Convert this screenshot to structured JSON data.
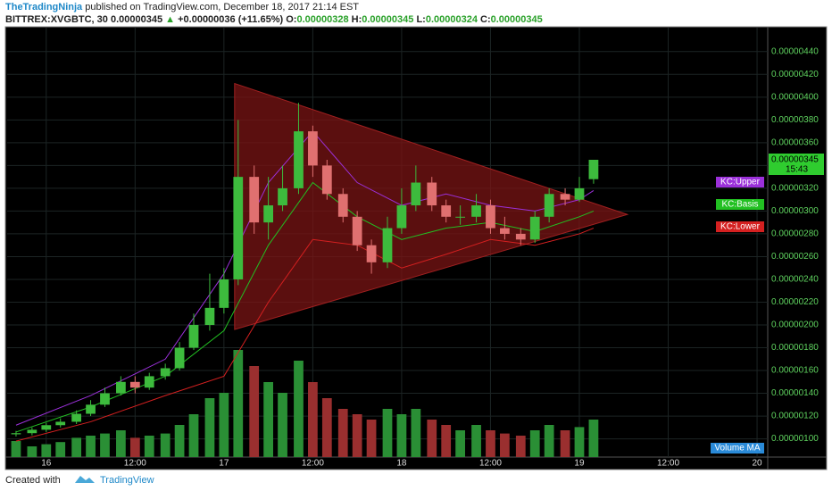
{
  "header": {
    "author": "TheTradingNinja",
    "published": "published on TradingView.com, December 18, 2017 21:14 EST",
    "symbol": "BITTREX:XVGBTC, 30",
    "price": "0.00000345",
    "change": "+0.00000036 (+11.65%)",
    "o_label": "O:",
    "o": "0.00000328",
    "h_label": "H:",
    "h": "0.00000345",
    "l_label": "L:",
    "l": "0.00000324",
    "c_label": "C:",
    "c": "0.00000345"
  },
  "chart_data": {
    "type": "candlestick",
    "xlim": [
      15.78,
      20.06
    ],
    "xticks": [
      16,
      {
        "value": 16.5,
        "label": "12:00"
      },
      17,
      {
        "value": 17.5,
        "label": "12:00"
      },
      18,
      {
        "value": 18.5,
        "label": "12:00"
      },
      19,
      {
        "value": 19.5,
        "label": "12:00"
      },
      20
    ],
    "ylim": [
      8.4e-07,
      4.61e-06
    ],
    "yticks": [
      {
        "value": 1e-06,
        "label": "0.00000100"
      },
      {
        "value": 1.2e-06,
        "label": "0.00000120"
      },
      {
        "value": 1.4e-06,
        "label": "0.00000140"
      },
      {
        "value": 1.6e-06,
        "label": "0.00000160"
      },
      {
        "value": 1.8e-06,
        "label": "0.00000180"
      },
      {
        "value": 2e-06,
        "label": "0.00000200"
      },
      {
        "value": 2.2e-06,
        "label": "0.00000220"
      },
      {
        "value": 2.4e-06,
        "label": "0.00000240"
      },
      {
        "value": 2.6e-06,
        "label": "0.00000260"
      },
      {
        "value": 2.8e-06,
        "label": "0.00000280"
      },
      {
        "value": 3e-06,
        "label": "0.00000300"
      },
      {
        "value": 3.2e-06,
        "label": "0.00000320"
      },
      {
        "value": 3.4e-06,
        "label": "0.00000340"
      },
      {
        "value": 3.6e-06,
        "label": "0.00000360"
      },
      {
        "value": 3.8e-06,
        "label": "0.00000380"
      },
      {
        "value": 4e-06,
        "label": "0.00000400"
      },
      {
        "value": 4.2e-06,
        "label": "0.00000420"
      },
      {
        "value": 4.4e-06,
        "label": "0.00000440"
      }
    ],
    "grid": true,
    "candles": {
      "x": [
        15.83,
        15.92,
        16.0,
        16.08,
        16.17,
        16.25,
        16.33,
        16.42,
        16.5,
        16.58,
        16.67,
        16.75,
        16.83,
        16.92,
        17.0,
        17.08,
        17.17,
        17.25,
        17.33,
        17.42,
        17.5,
        17.58,
        17.67,
        17.75,
        17.83,
        17.92,
        18.0,
        18.08,
        18.17,
        18.25,
        18.33,
        18.42,
        18.5,
        18.58,
        18.67,
        18.75,
        18.83,
        18.92,
        19.0,
        19.08
      ],
      "open": [
        1.04e-06,
        1.05e-06,
        1.08e-06,
        1.12e-06,
        1.15e-06,
        1.22e-06,
        1.3e-06,
        1.4e-06,
        1.5e-06,
        1.45e-06,
        1.55e-06,
        1.62e-06,
        1.8e-06,
        2e-06,
        2.15e-06,
        2.4e-06,
        3.3e-06,
        2.9e-06,
        3.05e-06,
        3.2e-06,
        3.7e-06,
        3.4e-06,
        3.15e-06,
        2.95e-06,
        2.7e-06,
        2.55e-06,
        2.85e-06,
        3.05e-06,
        3.25e-06,
        3.05e-06,
        2.95e-06,
        2.95e-06,
        3.05e-06,
        2.85e-06,
        2.8e-06,
        2.75e-06,
        2.95e-06,
        3.15e-06,
        3.1e-06,
        3.28e-06
      ],
      "high": [
        1.07e-06,
        1.1e-06,
        1.14e-06,
        1.18e-06,
        1.25e-06,
        1.34e-06,
        1.45e-06,
        1.55e-06,
        1.55e-06,
        1.58e-06,
        1.66e-06,
        1.85e-06,
        2.1e-06,
        2.45e-06,
        2.5e-06,
        3.8e-06,
        3.4e-06,
        3.3e-06,
        3.4e-06,
        3.95e-06,
        3.75e-06,
        3.45e-06,
        3.2e-06,
        3e-06,
        2.75e-06,
        2.95e-06,
        3.2e-06,
        3.4e-06,
        3.3e-06,
        3.1e-06,
        3.05e-06,
        3.15e-06,
        3.1e-06,
        2.95e-06,
        2.85e-06,
        3e-06,
        3.2e-06,
        3.2e-06,
        3.3e-06,
        3.45e-06
      ],
      "low": [
        1.02e-06,
        1.03e-06,
        1.06e-06,
        1.1e-06,
        1.13e-06,
        1.2e-06,
        1.28e-06,
        1.38e-06,
        1.4e-06,
        1.43e-06,
        1.52e-06,
        1.6e-06,
        1.78e-06,
        1.95e-06,
        2.1e-06,
        2.35e-06,
        2.8e-06,
        2.75e-06,
        3e-06,
        3.15e-06,
        3.3e-06,
        3.1e-06,
        2.9e-06,
        2.65e-06,
        2.45e-06,
        2.5e-06,
        2.8e-06,
        3e-06,
        3e-06,
        2.9e-06,
        2.88e-06,
        2.9e-06,
        2.8e-06,
        2.75e-06,
        2.7e-06,
        2.72e-06,
        2.9e-06,
        3.05e-06,
        3.08e-06,
        3.24e-06
      ],
      "close": [
        1.05e-06,
        1.08e-06,
        1.12e-06,
        1.15e-06,
        1.22e-06,
        1.3e-06,
        1.4e-06,
        1.5e-06,
        1.45e-06,
        1.55e-06,
        1.62e-06,
        1.8e-06,
        2e-06,
        2.15e-06,
        2.4e-06,
        3.3e-06,
        2.9e-06,
        3.05e-06,
        3.2e-06,
        3.7e-06,
        3.4e-06,
        3.15e-06,
        2.95e-06,
        2.7e-06,
        2.55e-06,
        2.85e-06,
        3.05e-06,
        3.25e-06,
        3.05e-06,
        2.95e-06,
        2.95e-06,
        3.05e-06,
        2.85e-06,
        2.8e-06,
        2.75e-06,
        2.95e-06,
        3.15e-06,
        3.1e-06,
        3.2e-06,
        3.45e-06
      ],
      "volume": [
        15,
        10,
        12,
        14,
        18,
        20,
        22,
        25,
        18,
        20,
        22,
        30,
        40,
        55,
        60,
        100,
        85,
        70,
        60,
        90,
        70,
        55,
        45,
        40,
        35,
        45,
        40,
        45,
        35,
        30,
        25,
        30,
        25,
        22,
        20,
        25,
        30,
        25,
        28,
        35
      ],
      "up_color": "#3dbb3d",
      "down_color": "#e07070",
      "volume_up_color": "#2a8f35",
      "volume_down_color": "#9a2f2f"
    },
    "indicators": [
      {
        "name": "KC:Upper",
        "color": "#9b30d9",
        "x": [
          15.83,
          16.25,
          16.67,
          17.0,
          17.25,
          17.5,
          17.75,
          18.0,
          18.25,
          18.5,
          18.75,
          19.0,
          19.08
        ],
        "values": [
          1.12e-06,
          1.38e-06,
          1.7e-06,
          2.45e-06,
          3.25e-06,
          3.7e-06,
          3.25e-06,
          3.05e-06,
          3.15e-06,
          3.05e-06,
          3e-06,
          3.1e-06,
          3.18e-06
        ]
      },
      {
        "name": "KC:Basis",
        "color": "#22c022",
        "x": [
          15.83,
          16.25,
          16.67,
          17.0,
          17.25,
          17.5,
          17.75,
          18.0,
          18.25,
          18.5,
          18.75,
          19.0,
          19.08
        ],
        "values": [
          1.06e-06,
          1.28e-06,
          1.55e-06,
          1.95e-06,
          2.7e-06,
          3.25e-06,
          2.95e-06,
          2.75e-06,
          2.85e-06,
          2.9e-06,
          2.82e-06,
          2.95e-06,
          3e-06
        ]
      },
      {
        "name": "KC:Lower",
        "color": "#d42020",
        "x": [
          15.83,
          16.25,
          16.67,
          17.0,
          17.25,
          17.5,
          17.75,
          18.0,
          18.25,
          18.5,
          18.75,
          19.0,
          19.08
        ],
        "values": [
          9.8e-07,
          1.15e-06,
          1.38e-06,
          1.55e-06,
          2.2e-06,
          2.75e-06,
          2.7e-06,
          2.5e-06,
          2.62e-06,
          2.75e-06,
          2.7e-06,
          2.8e-06,
          2.85e-06
        ]
      }
    ],
    "triangle": {
      "x": [
        17.06,
        17.06,
        19.27
      ],
      "y": [
        4.12e-06,
        1.96e-06,
        2.97e-06
      ],
      "color": "#7a1414"
    },
    "countdown": "15:43",
    "volume_label": "Volume MA"
  },
  "footer": {
    "created": "Created with",
    "brand": "TradingView"
  }
}
